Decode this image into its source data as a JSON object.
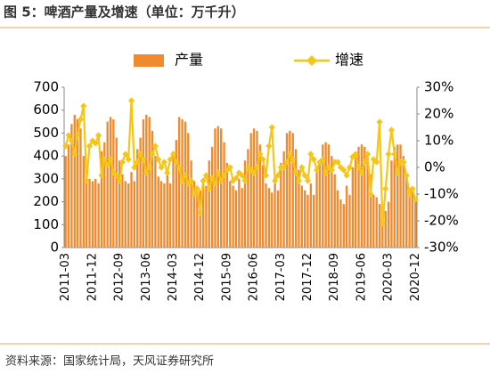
{
  "chart_data": {
    "type": "bar_line",
    "title": "图 5：啤酒产量及增速（单位：万千升）",
    "source": "资料来源：国家统计局，天风证券研究所",
    "categories": [
      "2011-03",
      null,
      null,
      null,
      null,
      null,
      null,
      null,
      null,
      "2011-12",
      null,
      null,
      null,
      null,
      null,
      null,
      null,
      null,
      "2012-09",
      null,
      null,
      null,
      null,
      null,
      null,
      null,
      null,
      "2013-06",
      null,
      null,
      null,
      null,
      null,
      null,
      null,
      null,
      "2014-03",
      null,
      null,
      null,
      null,
      null,
      null,
      null,
      null,
      "2014-12",
      null,
      null,
      null,
      null,
      null,
      null,
      null,
      null,
      "2015-09",
      null,
      null,
      null,
      null,
      null,
      null,
      null,
      null,
      "2016-06",
      null,
      null,
      null,
      null,
      null,
      null,
      null,
      null,
      "2017-03",
      null,
      null,
      null,
      null,
      null,
      null,
      null,
      null,
      "2017-12",
      null,
      null,
      null,
      null,
      null,
      null,
      null,
      null,
      "2018-09",
      null,
      null,
      null,
      null,
      null,
      null,
      null,
      null,
      "2019-06",
      null,
      null,
      null,
      null,
      null,
      null,
      null,
      null,
      "2020-03",
      null,
      null,
      null,
      null,
      null,
      null,
      null,
      null,
      "2020-12"
    ],
    "series": [
      {
        "name": "产量",
        "color": "#f08a2e",
        "kind": "bar",
        "values": [
          400,
          450,
          540,
          580,
          560,
          520,
          400,
          320,
          300,
          290,
          300,
          280,
          420,
          460,
          550,
          570,
          560,
          480,
          380,
          320,
          290,
          280,
          330,
          290,
          430,
          480,
          560,
          580,
          570,
          510,
          400,
          310,
          290,
          280,
          320,
          280,
          420,
          470,
          570,
          560,
          550,
          500,
          380,
          290,
          270,
          250,
          300,
          270,
          380,
          440,
          520,
          530,
          520,
          460,
          370,
          290,
          270,
          250,
          300,
          260,
          380,
          430,
          500,
          520,
          510,
          450,
          360,
          280,
          260,
          240,
          290,
          250,
          370,
          420,
          500,
          510,
          500,
          430,
          340,
          270,
          250,
          230,
          280,
          230,
          340,
          380,
          450,
          460,
          450,
          400,
          320,
          250,
          210,
          190,
          270,
          230,
          350,
          400,
          440,
          450,
          440,
          390,
          320,
          230,
          220,
          190,
          150,
          160,
          200,
          380,
          440,
          450,
          450,
          400,
          320,
          260,
          250,
          210
        ]
      },
      {
        "name": "增速",
        "color": "#f5c518",
        "kind": "line",
        "axis": "y2",
        "values": [
          8,
          12,
          10,
          5,
          12,
          18,
          23,
          -5,
          8,
          10,
          9,
          12,
          -3,
          3,
          1,
          3,
          -2,
          -3,
          -5,
          2,
          5,
          3,
          25,
          0,
          2,
          5,
          3,
          -2,
          0,
          5,
          8,
          3,
          0,
          2,
          -2,
          3,
          5,
          2,
          0,
          -5,
          -3,
          -6,
          -5,
          -10,
          -8,
          -17,
          -5,
          -3,
          -8,
          -4,
          -6,
          -2,
          -5,
          -3,
          -1,
          0,
          -5,
          -4,
          -2,
          -3,
          -5,
          0,
          -1,
          -2,
          0,
          5,
          3,
          -3,
          8,
          15,
          -5,
          -3,
          0,
          0,
          2,
          5,
          3,
          -2,
          -5,
          0,
          -3,
          -5,
          5,
          3,
          -1,
          2,
          3,
          -2,
          0,
          -1,
          2,
          2,
          0,
          -1,
          -3,
          0,
          4,
          5,
          0,
          -2,
          2,
          5,
          -10,
          3,
          2,
          17,
          -21,
          -8,
          5,
          14,
          5,
          -2,
          2,
          2,
          -3,
          -10,
          -8,
          -12
        ]
      }
    ],
    "ylim": [
      0,
      700
    ],
    "yticks": [
      0,
      100,
      200,
      300,
      400,
      500,
      600,
      700
    ],
    "y2lim": [
      -30,
      30
    ],
    "y2ticks": [
      {
        "value": -30,
        "label": "-30%"
      },
      {
        "value": -20,
        "label": "-20%"
      },
      {
        "value": -10,
        "label": "-10%"
      },
      {
        "value": 0,
        "label": "0%"
      },
      {
        "value": 10,
        "label": "10%"
      },
      {
        "value": 20,
        "label": "20%"
      },
      {
        "value": 30,
        "label": "30%"
      }
    ],
    "grid": false
  }
}
